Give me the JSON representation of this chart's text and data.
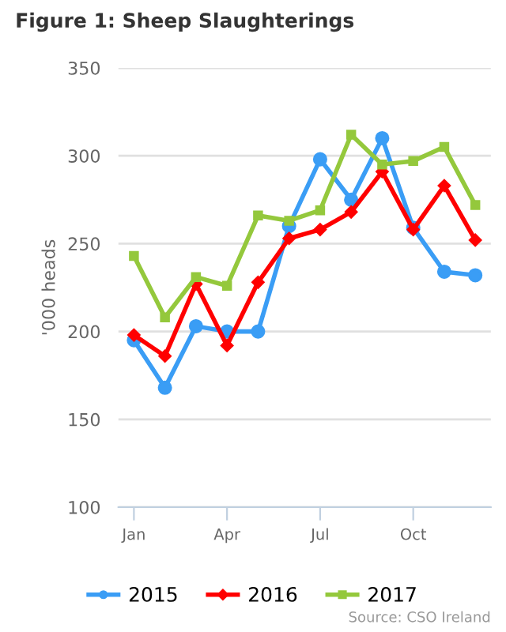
{
  "chart_data": {
    "type": "line",
    "title": "Figure 1: Sheep Slaughterings",
    "ylabel": "'000 heads",
    "categories": [
      "Jan",
      null,
      null,
      "Apr",
      null,
      null,
      "Jul",
      null,
      null,
      "Oct",
      null,
      null
    ],
    "series": [
      {
        "name": "2015",
        "color": "#3a9df5",
        "marker": "circle",
        "values": [
          195,
          168,
          203,
          200,
          200,
          260,
          298,
          275,
          310,
          259,
          234,
          232
        ]
      },
      {
        "name": "2016",
        "color": "#ff0000",
        "marker": "diamond",
        "values": [
          198,
          186,
          227,
          192,
          228,
          253,
          258,
          268,
          291,
          258,
          283,
          252
        ]
      },
      {
        "name": "2017",
        "color": "#94c83c",
        "marker": "square",
        "values": [
          243,
          208,
          231,
          226,
          266,
          263,
          269,
          312,
          295,
          297,
          305,
          272
        ]
      }
    ],
    "ylim": [
      100,
      350
    ],
    "yticks": [
      100,
      150,
      200,
      250,
      300,
      350
    ],
    "grid": "y",
    "legend": "bottom",
    "line_style": "solid",
    "annotations": [
      "Source: CSO Ireland"
    ]
  }
}
